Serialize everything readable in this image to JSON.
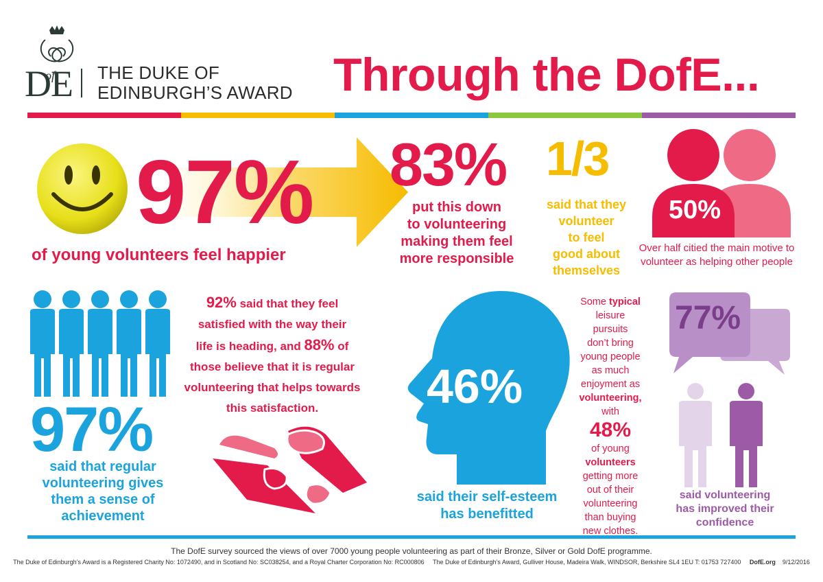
{
  "logo": {
    "monogram": "DofE",
    "line1": "THE DUKE OF",
    "line2": "EDINBURGH’S AWARD"
  },
  "headline": "Through the DofE...",
  "stripe_colors": [
    "#e31b4b",
    "#f6bc00",
    "#1aa3dc",
    "#8cc63f",
    "#9d5aa7"
  ],
  "stat_happier": {
    "value": "97%",
    "caption": "of young volunteers feel happier"
  },
  "stat_responsible": {
    "value": "83%",
    "caption_lines": [
      "put this down",
      "to volunteering",
      "making them feel",
      "more responsible"
    ]
  },
  "stat_feel_good": {
    "value": "1/3",
    "caption_lines": [
      "said that they",
      "volunteer",
      "to feel",
      "good about",
      "themselves"
    ]
  },
  "stat_helping": {
    "value": "50%",
    "caption_lines": [
      "Over half citied the main motive to",
      "volunteer as helping other people"
    ]
  },
  "stat_achievement": {
    "value": "97%",
    "caption_lines": [
      "said that regular",
      "volunteering gives",
      "them a sense of",
      "achievement"
    ]
  },
  "stat_satisfied": {
    "pct1": "92%",
    "t1": " said that they feel",
    "t2": "satisfied with the way their",
    "t3": "life is heading, and ",
    "pct2": "88%",
    "t4": " of",
    "t5": "those believe that it is regular",
    "t6": "volunteering that helps towards",
    "t7": "this satisfaction."
  },
  "stat_self_esteem": {
    "value": "46%",
    "caption_lines": [
      "said their self-esteem",
      "has benefitted"
    ]
  },
  "stat_leisure": {
    "l1a": "Some ",
    "l1b": "typical",
    "l2": "leisure",
    "l3": "pursuits",
    "l4": "don’t bring",
    "l5": "young people",
    "l6": "as much",
    "l7": "enjoyment as",
    "l8": "volunteering,",
    "l9": "with",
    "value": "48%",
    "l10": "of young",
    "l11": "volunteers",
    "l12": "getting more",
    "l13": "out of their",
    "l14": "volunteering",
    "l15": "than buying",
    "l16": "new clothes."
  },
  "stat_confidence": {
    "value": "77%",
    "caption_lines": [
      "said volunteering",
      "has improved their",
      "confidence"
    ]
  },
  "footer": {
    "survey": "The DofE survey sourced the views of over 7000 young people volunteering as part of their Bronze, Silver or Gold DofE programme.",
    "legal1": "The Duke of Edinburgh’s Award is a Registered Charity No: 1072490, and in Scotland No: SC038254, and a Royal Charter Corporation No: RC000806",
    "legal2": "The Duke of Edinburgh’s Award, Gulliver House, Madeira Walk, WINDSOR, Berkshire SL4 1EU T: 01753 727400",
    "site": "DofE.org",
    "date": "9/12/2016"
  },
  "colors": {
    "red": "#e31b4b",
    "pink": "#ee6a85",
    "yellow": "#f6bc00",
    "blue": "#1aa3dc",
    "purple": "#9d5aa7",
    "lilac": "#c9a9d4"
  },
  "icons": [
    "crown-cipher-icon",
    "smiley-face-icon",
    "arrow-icon",
    "two-people-icon",
    "people-group-icon",
    "handshake-icon",
    "head-silhouette-icon",
    "speech-bubbles-icon",
    "two-persons-icon"
  ]
}
